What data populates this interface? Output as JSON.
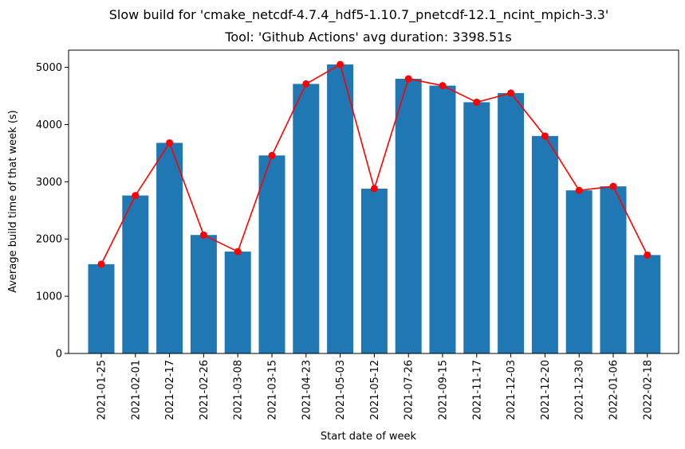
{
  "chart_data": {
    "type": "bar",
    "title": "Slow build for 'cmake_netcdf-4.7.4_hdf5-1.10.7_pnetcdf-12.1_ncint_mpich-3.3'",
    "subtitle": "Tool: 'Github Actions' avg duration: 3398.51s",
    "xlabel": "Start date of week",
    "ylabel": "Average build time of that week (s)",
    "categories": [
      "2021-01-25",
      "2021-02-01",
      "2021-02-17",
      "2021-02-26",
      "2021-03-08",
      "2021-03-15",
      "2021-04-23",
      "2021-05-03",
      "2021-05-12",
      "2021-07-26",
      "2021-09-15",
      "2021-11-17",
      "2021-12-03",
      "2021-12-20",
      "2021-12-30",
      "2022-01-06",
      "2022-02-18"
    ],
    "series": [
      {
        "type": "bar",
        "color": "#1f77b4",
        "values": [
          1560,
          2760,
          3680,
          2070,
          1780,
          3460,
          4710,
          5050,
          2880,
          4800,
          4680,
          4390,
          4550,
          3800,
          2850,
          2920,
          1720
        ]
      },
      {
        "type": "line",
        "color": "#ff0000",
        "values": [
          1560,
          2760,
          3680,
          2070,
          1780,
          3460,
          4710,
          5050,
          2880,
          4800,
          4680,
          4390,
          4550,
          3800,
          2850,
          2920,
          1720
        ]
      }
    ],
    "ylim": [
      0,
      5300
    ],
    "yticks": [
      0,
      1000,
      2000,
      3000,
      4000,
      5000
    ],
    "grid": false,
    "legend": "none"
  }
}
